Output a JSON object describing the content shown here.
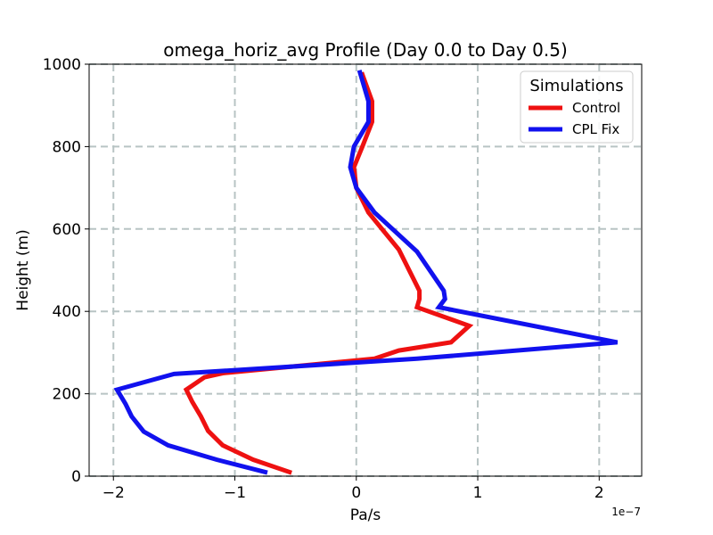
{
  "chart_data": {
    "type": "line",
    "title": "omega_horiz_avg Profile (Day 0.0 to Day 0.5)",
    "xlabel": "Pa/s",
    "ylabel": "Height (m)",
    "x_offset_label": "1e−7",
    "x_scale": 1e-07,
    "xlim": [
      -2.2,
      2.35
    ],
    "ylim": [
      0,
      1000
    ],
    "xticks": [
      -2,
      -1,
      0,
      1,
      2
    ],
    "xtick_labels": [
      "−2",
      "−1",
      "0",
      "1",
      "2"
    ],
    "yticks": [
      0,
      200,
      400,
      600,
      800,
      1000
    ],
    "ytick_labels": [
      "0",
      "200",
      "400",
      "600",
      "800",
      "1000"
    ],
    "grid": true,
    "legend": {
      "title": "Simulations",
      "position": "top-right"
    },
    "series": [
      {
        "name": "Control",
        "color": "#ee1111",
        "x": [
          -0.55,
          -0.85,
          -1.1,
          -1.22,
          -1.28,
          -1.35,
          -1.4,
          -1.25,
          -1.1,
          0.15,
          0.35,
          0.78,
          0.93,
          0.5,
          0.52,
          0.52,
          0.35,
          0.1,
          0.0,
          -0.02,
          0.05,
          0.13,
          0.13,
          0.05
        ],
        "y": [
          10,
          40,
          75,
          110,
          145,
          180,
          210,
          240,
          250,
          285,
          305,
          325,
          365,
          410,
          430,
          450,
          550,
          640,
          700,
          750,
          800,
          860,
          910,
          975
        ]
      },
      {
        "name": "CPL Fix",
        "color": "#1111ee",
        "x": [
          -0.75,
          -1.15,
          -1.55,
          -1.75,
          -1.85,
          -1.9,
          -1.97,
          -1.5,
          0.5,
          2.15,
          0.68,
          0.73,
          0.72,
          0.5,
          0.15,
          0.0,
          -0.05,
          -0.02,
          0.1,
          0.1,
          0.03
        ],
        "y": [
          10,
          40,
          75,
          108,
          145,
          175,
          210,
          248,
          285,
          325,
          410,
          430,
          450,
          545,
          640,
          700,
          750,
          800,
          860,
          910,
          980
        ]
      }
    ]
  }
}
